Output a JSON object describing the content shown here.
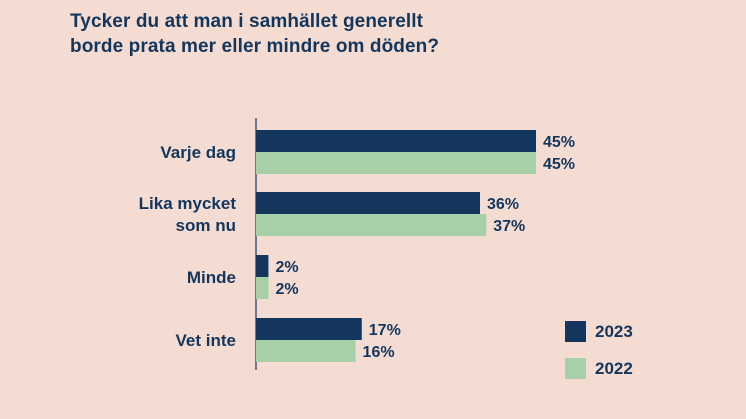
{
  "title_lines": [
    "Tycker du att man i samhället generellt",
    "borde prata mer eller mindre om döden?"
  ],
  "colors": {
    "background": "#f4dcd2",
    "series_2023": "#14365c",
    "series_2022": "#a7cfa8",
    "text": "#14365c"
  },
  "chart_data": {
    "type": "bar",
    "orientation": "horizontal",
    "title": "Tycker du att man i samhället generellt borde prata mer eller mindre om döden?",
    "categories": [
      [
        "Varje dag"
      ],
      [
        "Lika mycket",
        "som nu"
      ],
      [
        "Minde"
      ],
      [
        "Vet inte"
      ]
    ],
    "series": [
      {
        "name": "2023",
        "color": "#14365c",
        "values": [
          45,
          36,
          2,
          17
        ],
        "labels": [
          "45%",
          "36%",
          "2%",
          "17%"
        ]
      },
      {
        "name": "2022",
        "color": "#a7cfa8",
        "values": [
          45,
          37,
          2,
          16
        ],
        "labels": [
          "45%",
          "37%",
          "2%",
          "16%"
        ]
      }
    ],
    "xlim": [
      0,
      50
    ],
    "grid": false,
    "legend": "bottom-right"
  }
}
